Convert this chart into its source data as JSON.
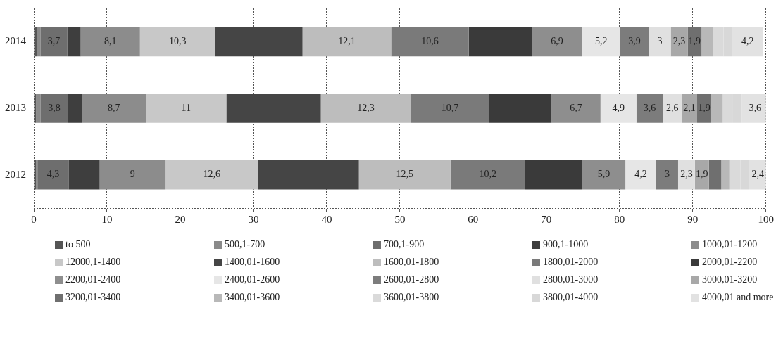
{
  "chart_data": {
    "type": "bar",
    "orientation": "horizontal",
    "stacked": true,
    "categories": [
      "2014",
      "2013",
      "2012"
    ],
    "xlim": [
      0,
      100
    ],
    "xticks": [
      0,
      10,
      20,
      30,
      40,
      50,
      60,
      70,
      80,
      90,
      100
    ],
    "grid": "x",
    "legend": "bottom",
    "series": [
      {
        "name": "to 500",
        "color": "#555555",
        "values": [
          0.4,
          0.3,
          0.3
        ],
        "value_labels": [
          null,
          null,
          null
        ]
      },
      {
        "name": "500,1-700",
        "color": "#8a8a8a",
        "values": [
          0.5,
          0.6,
          0.2
        ],
        "value_labels": [
          null,
          null,
          null
        ]
      },
      {
        "name": "700,1-900",
        "color": "#6e6e6e",
        "values": [
          3.7,
          3.8,
          4.3
        ],
        "value_labels": [
          "3,7",
          "3,8",
          "4,3"
        ]
      },
      {
        "name": "900,1-1000",
        "color": "#3e3e3e",
        "values": [
          1.8,
          1.9,
          4.2
        ],
        "value_labels": [
          null,
          null,
          null
        ]
      },
      {
        "name": "1000,01-1200",
        "color": "#8c8c8c",
        "values": [
          8.1,
          8.7,
          9
        ],
        "value_labels": [
          "8,1",
          "8,7",
          "9"
        ]
      },
      {
        "name": "12000,1-1400",
        "color": "#c8c8c8",
        "values": [
          10.3,
          11,
          12.6
        ],
        "value_labels": [
          "10,3",
          "11",
          "12,6"
        ]
      },
      {
        "name": "1400,01-1600",
        "color": "#454545",
        "values": [
          11.9,
          12.9,
          13.8
        ],
        "value_labels": [
          null,
          null,
          null
        ]
      },
      {
        "name": "1600,01-1800",
        "color": "#bdbdbd",
        "values": [
          12.1,
          12.3,
          12.5
        ],
        "value_labels": [
          "12,1",
          "12,3",
          "12,5"
        ]
      },
      {
        "name": "1800,01-2000",
        "color": "#7a7a7a",
        "values": [
          10.6,
          10.7,
          10.2
        ],
        "value_labels": [
          "10,6",
          "10,7",
          "10,2"
        ]
      },
      {
        "name": "2000,01-2200",
        "color": "#3a3a3a",
        "values": [
          8.6,
          8.5,
          7.8
        ],
        "value_labels": [
          null,
          null,
          null
        ]
      },
      {
        "name": "2200,01-2400",
        "color": "#8e8e8e",
        "values": [
          6.9,
          6.7,
          5.9
        ],
        "value_labels": [
          "6,9",
          "6,7",
          "5,9"
        ]
      },
      {
        "name": "2400,01-2600",
        "color": "#e6e6e6",
        "values": [
          5.2,
          4.9,
          4.2
        ],
        "value_labels": [
          "5,2",
          "4,9",
          "4,2"
        ]
      },
      {
        "name": "2600,01-2800",
        "color": "#7c7c7c",
        "values": [
          3.9,
          3.6,
          3
        ],
        "value_labels": [
          "3,9",
          "3,6",
          "3"
        ]
      },
      {
        "name": "2800,01-3000",
        "color": "#e0e0e0",
        "values": [
          3,
          2.6,
          2.3
        ],
        "value_labels": [
          "3",
          "2,6",
          "2,3"
        ]
      },
      {
        "name": "3000,01-3200",
        "color": "#a8a8a8",
        "values": [
          2.3,
          2.1,
          1.9
        ],
        "value_labels": [
          "2,3",
          "2,1",
          "1,9"
        ]
      },
      {
        "name": "3200,01-3400",
        "color": "#6f6f6f",
        "values": [
          1.9,
          1.9,
          1.7
        ],
        "value_labels": [
          "1,9",
          "1,9",
          null
        ]
      },
      {
        "name": "3400,01-3600",
        "color": "#b8b8b8",
        "values": [
          1.6,
          1.6,
          1.1
        ],
        "value_labels": [
          null,
          null,
          null
        ]
      },
      {
        "name": "3600,01-3800",
        "color": "#dadada",
        "values": [
          1.4,
          1.4,
          1.5
        ],
        "value_labels": [
          null,
          null,
          null
        ]
      },
      {
        "name": "3800,01-4000",
        "color": "#d8d8d8",
        "values": [
          1.2,
          1.2,
          1.2
        ],
        "value_labels": [
          null,
          null,
          null
        ]
      },
      {
        "name": "4000,01 and more",
        "color": "#e2e2e2",
        "values": [
          4.2,
          3.6,
          2.4
        ],
        "value_labels": [
          "4,2",
          "3,6",
          "2,4"
        ]
      }
    ]
  }
}
